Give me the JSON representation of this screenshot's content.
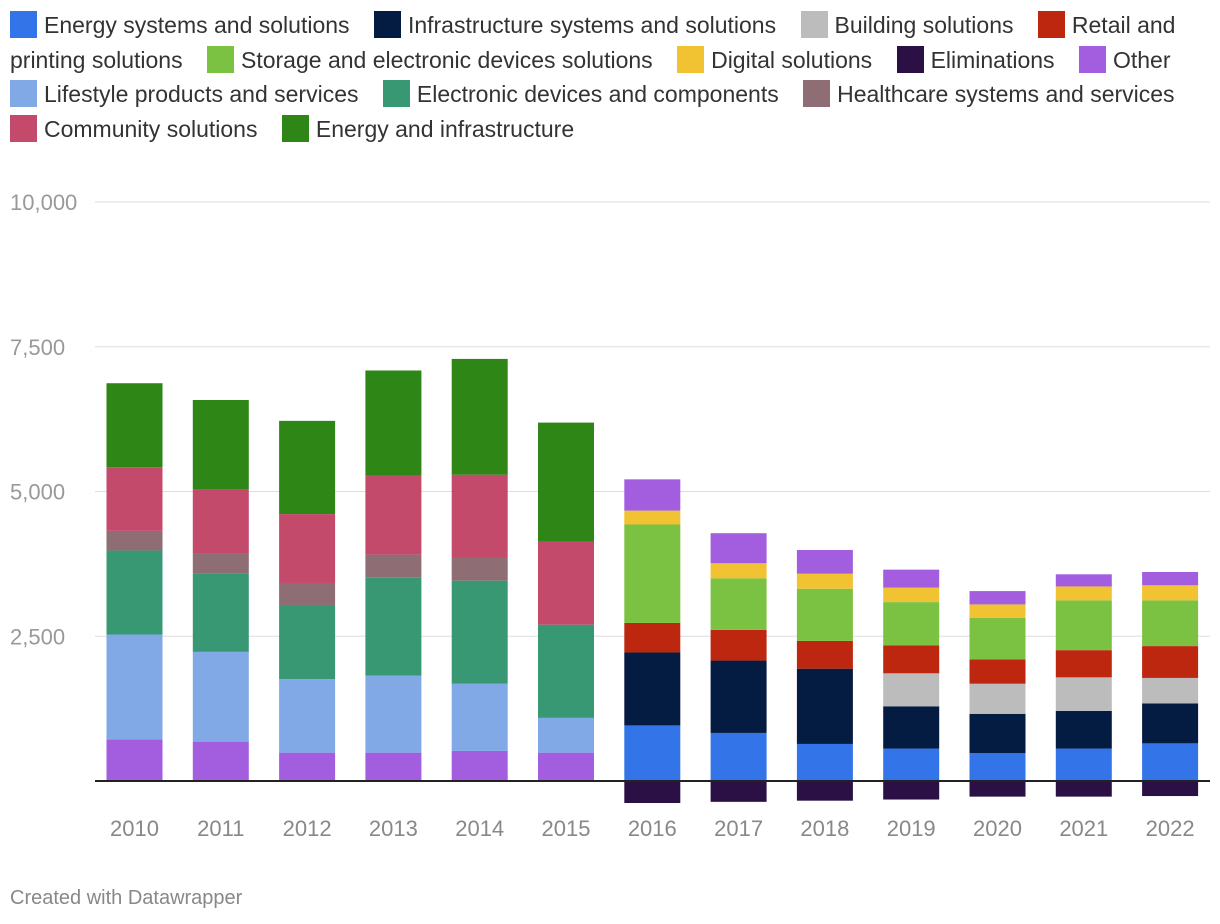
{
  "chart_data": {
    "type": "bar",
    "stacked": true,
    "title": "",
    "xlabel": "",
    "ylabel": "",
    "ylim": [
      -400,
      10000
    ],
    "yticks": [
      2500,
      5000,
      7500,
      10000
    ],
    "ytick_labels": [
      "2,500",
      "5,000",
      "7,500",
      "10,000"
    ],
    "grid": true,
    "legend_position": "top",
    "categories": [
      "2010",
      "2011",
      "2012",
      "2013",
      "2014",
      "2015",
      "2016",
      "2017",
      "2018",
      "2019",
      "2020",
      "2021",
      "2022"
    ],
    "series": [
      {
        "name": "Energy systems and solutions",
        "color": "#3374e8",
        "values": [
          0,
          0,
          0,
          0,
          0,
          0,
          960,
          830,
          640,
          560,
          480,
          560,
          650
        ]
      },
      {
        "name": "Infrastructure systems and solutions",
        "color": "#041b42",
        "values": [
          0,
          0,
          0,
          0,
          0,
          0,
          1260,
          1250,
          1300,
          730,
          680,
          650,
          690
        ]
      },
      {
        "name": "Building solutions",
        "color": "#bcbcbc",
        "values": [
          0,
          0,
          0,
          0,
          0,
          0,
          0,
          0,
          0,
          570,
          520,
          580,
          440
        ]
      },
      {
        "name": "Retail and printing solutions",
        "color": "#bd2710",
        "values": [
          0,
          0,
          0,
          0,
          0,
          0,
          510,
          530,
          480,
          480,
          420,
          470,
          550
        ]
      },
      {
        "name": "Storage and electronic devices solutions",
        "color": "#7bc142",
        "values": [
          0,
          0,
          0,
          0,
          0,
          0,
          1700,
          890,
          900,
          750,
          720,
          860,
          790
        ]
      },
      {
        "name": "Digital solutions",
        "color": "#f1c232",
        "values": [
          0,
          0,
          0,
          0,
          0,
          0,
          240,
          260,
          260,
          250,
          230,
          240,
          260
        ]
      },
      {
        "name": "Eliminations",
        "color": "#2a1045",
        "values": [
          0,
          0,
          0,
          0,
          0,
          0,
          -380,
          -360,
          -340,
          -320,
          -270,
          -270,
          -260
        ]
      },
      {
        "name": "Other",
        "color": "#a35ee0",
        "values": [
          720,
          680,
          490,
          490,
          520,
          490,
          540,
          520,
          410,
          310,
          230,
          210,
          230
        ]
      },
      {
        "name": "Lifestyle products and services",
        "color": "#80a9e6",
        "values": [
          1810,
          1550,
          1270,
          1330,
          1160,
          600,
          0,
          0,
          0,
          0,
          0,
          0,
          0
        ]
      },
      {
        "name": "Electronic devices and components",
        "color": "#389874",
        "values": [
          1450,
          1360,
          1280,
          1690,
          1780,
          1610,
          0,
          0,
          0,
          0,
          0,
          0,
          0
        ]
      },
      {
        "name": "Healthcare systems and services",
        "color": "#8e6d74",
        "values": [
          340,
          340,
          380,
          400,
          400,
          0,
          0,
          0,
          0,
          0,
          0,
          0,
          0
        ]
      },
      {
        "name": "Community solutions",
        "color": "#c44a6c",
        "values": [
          1100,
          1100,
          1190,
          1360,
          1430,
          1430,
          0,
          0,
          0,
          0,
          0,
          0,
          0
        ]
      },
      {
        "name": "Energy and infrastructure",
        "color": "#2e8616",
        "values": [
          1450,
          1550,
          1610,
          1820,
          2000,
          2060,
          0,
          0,
          0,
          0,
          0,
          0,
          0
        ]
      }
    ]
  },
  "footer": {
    "credit": "Created with Datawrapper"
  }
}
